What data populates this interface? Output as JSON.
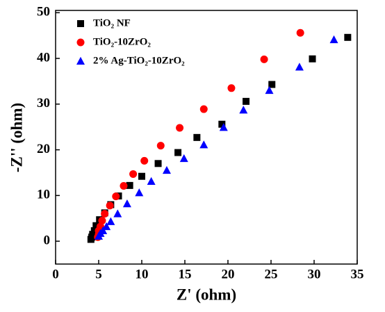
{
  "chart_data": {
    "type": "scatter",
    "x_label": "Z' (ohm)",
    "y_label": "-Z'' (ohm)",
    "xlim": [
      0,
      35
    ],
    "ylim": [
      -5,
      50.5
    ],
    "xticks": [
      0,
      5,
      10,
      15,
      20,
      25,
      30,
      35
    ],
    "yticks": [
      0,
      10,
      20,
      30,
      40,
      50
    ],
    "legend": "upper left",
    "series": [
      {
        "name": "TiO₂ NF",
        "color": "#000000",
        "marker": "square",
        "x": [
          33.9,
          29.8,
          25.1,
          22.1,
          19.3,
          16.4,
          14.2,
          11.9,
          10.0,
          8.6,
          7.3,
          6.4,
          5.7,
          5.1,
          4.7,
          4.5,
          4.3,
          4.2,
          4.1
        ],
        "values": [
          44.6,
          39.9,
          34.3,
          30.6,
          25.6,
          22.7,
          19.4,
          17.0,
          14.2,
          12.2,
          9.9,
          8.0,
          6.2,
          4.7,
          3.4,
          2.3,
          1.5,
          0.9,
          0.4
        ]
      },
      {
        "name": "TiO₂-10ZrO₂",
        "color": "#ff0000",
        "marker": "circle",
        "x": [
          28.4,
          24.2,
          20.4,
          17.2,
          14.4,
          12.2,
          10.3,
          9.0,
          7.9,
          7.0,
          6.3,
          5.7,
          5.4,
          5.2,
          5.0,
          5.0,
          4.9
        ],
        "values": [
          45.6,
          39.8,
          33.5,
          28.9,
          24.8,
          20.9,
          17.6,
          14.7,
          12.1,
          9.8,
          7.8,
          6.0,
          4.5,
          3.2,
          2.3,
          1.5,
          0.9
        ]
      },
      {
        "name": "2% Ag-TiO₂-10ZrO₂",
        "color": "#0000ff",
        "marker": "triangle",
        "x": [
          32.3,
          28.3,
          24.8,
          21.8,
          19.5,
          17.2,
          14.9,
          12.9,
          11.1,
          9.7,
          8.3,
          7.2,
          6.4,
          5.9,
          5.5,
          5.2,
          5.0
        ],
        "values": [
          44.1,
          38.1,
          33.0,
          28.7,
          24.9,
          21.1,
          18.1,
          15.5,
          13.1,
          10.6,
          8.2,
          6.0,
          4.3,
          3.2,
          2.3,
          1.7,
          1.1
        ]
      }
    ]
  }
}
